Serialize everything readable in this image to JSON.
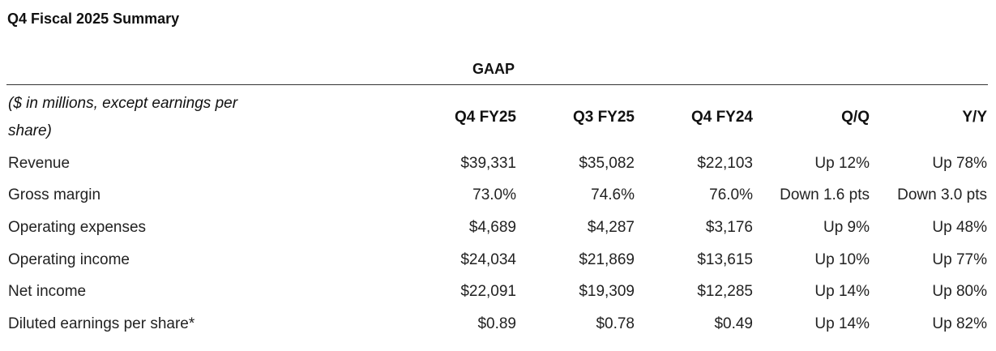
{
  "header": {
    "title": "Q4 Fiscal 2025 Summary",
    "section": "GAAP"
  },
  "table": {
    "columns": [
      "($ in millions, except earnings per share)",
      "Q4 FY25",
      "Q3 FY25",
      "Q4 FY24",
      "Q/Q",
      "Y/Y"
    ],
    "rows": [
      [
        "Revenue",
        "$39,331",
        "$35,082",
        "$22,103",
        "Up 12%",
        "Up 78%"
      ],
      [
        "Gross margin",
        "73.0%",
        "74.6%",
        "76.0%",
        "Down 1.6 pts",
        "Down 3.0 pts"
      ],
      [
        "Operating expenses",
        "$4,689",
        "$4,287",
        "$3,176",
        "Up 9%",
        "Up 48%"
      ],
      [
        "Operating income",
        "$24,034",
        "$21,869",
        "$13,615",
        "Up 10%",
        "Up 77%"
      ],
      [
        "Net income",
        "$22,091",
        "$19,309",
        "$12,285",
        "Up 14%",
        "Up 80%"
      ],
      [
        "Diluted earnings per share*",
        "$0.89",
        "$0.78",
        "$0.49",
        "Up 14%",
        "Up 82%"
      ]
    ]
  }
}
